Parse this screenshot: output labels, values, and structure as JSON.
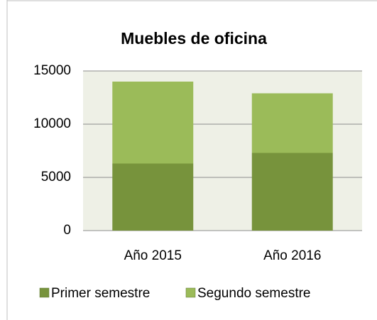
{
  "chart_data": {
    "type": "bar",
    "stacked": true,
    "title": "Muebles de oficina",
    "categories": [
      "Año 2015",
      "Año 2016"
    ],
    "series": [
      {
        "name": "Primer semestre",
        "color": "#77933c",
        "values": [
          6300,
          7300
        ]
      },
      {
        "name": "Segundo semestre",
        "color": "#9bbb59",
        "values": [
          7700,
          5600
        ]
      }
    ],
    "ylim": [
      0,
      15000
    ],
    "yticks": [
      0,
      5000,
      10000,
      15000
    ],
    "grid": true,
    "legend": "bottom"
  }
}
